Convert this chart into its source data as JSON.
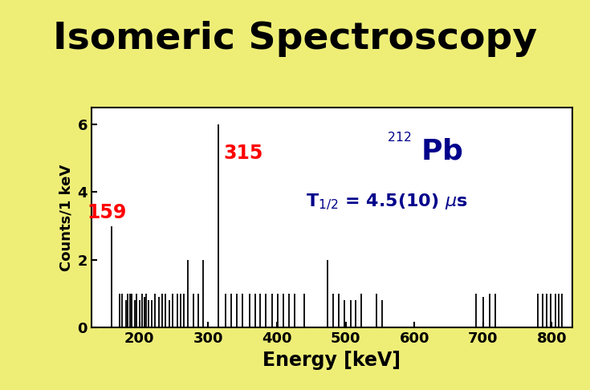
{
  "title": "Isomeric Spectroscopy",
  "title_bg": "#90EE90",
  "outer_bg": "#EEEE77",
  "plot_bg": "#FFFFFF",
  "black_bar_color": "#000000",
  "bar_color": "#000000",
  "ylabel": "Counts/1 keV",
  "xlabel": "Energy [keV]",
  "xlim": [
    130,
    830
  ],
  "ylim": [
    0,
    6.5
  ],
  "yticks": [
    0,
    2,
    4,
    6
  ],
  "xticks": [
    200,
    300,
    400,
    500,
    600,
    700,
    800
  ],
  "peak_label_159": "159",
  "peak_label_315": "315",
  "peak_label_color": "#FF0000",
  "annotation_color": "#00008B",
  "peaks": [
    [
      159,
      3.0
    ],
    [
      171,
      1.0
    ],
    [
      175,
      1.0
    ],
    [
      180,
      0.8
    ],
    [
      183,
      1.0
    ],
    [
      186,
      1.0
    ],
    [
      189,
      1.0
    ],
    [
      193,
      0.8
    ],
    [
      196,
      1.0
    ],
    [
      200,
      0.8
    ],
    [
      204,
      1.0
    ],
    [
      207,
      0.9
    ],
    [
      210,
      1.0
    ],
    [
      213,
      0.8
    ],
    [
      218,
      0.8
    ],
    [
      222,
      1.0
    ],
    [
      228,
      0.9
    ],
    [
      233,
      1.0
    ],
    [
      238,
      1.0
    ],
    [
      243,
      0.8
    ],
    [
      248,
      1.0
    ],
    [
      255,
      1.0
    ],
    [
      260,
      1.0
    ],
    [
      265,
      1.0
    ],
    [
      270,
      2.0
    ],
    [
      279,
      1.0
    ],
    [
      285,
      1.0
    ],
    [
      293,
      2.0
    ],
    [
      315,
      6.0
    ],
    [
      325,
      1.0
    ],
    [
      333,
      1.0
    ],
    [
      342,
      1.0
    ],
    [
      350,
      1.0
    ],
    [
      360,
      1.0
    ],
    [
      368,
      1.0
    ],
    [
      376,
      1.0
    ],
    [
      384,
      1.0
    ],
    [
      393,
      1.0
    ],
    [
      401,
      1.0
    ],
    [
      409,
      1.0
    ],
    [
      418,
      1.0
    ],
    [
      426,
      1.0
    ],
    [
      440,
      1.0
    ],
    [
      474,
      2.0
    ],
    [
      482,
      1.0
    ],
    [
      490,
      1.0
    ],
    [
      498,
      0.8
    ],
    [
      507,
      0.8
    ],
    [
      515,
      0.8
    ],
    [
      523,
      1.0
    ],
    [
      545,
      1.0
    ],
    [
      553,
      0.8
    ],
    [
      690,
      1.0
    ],
    [
      700,
      0.9
    ],
    [
      710,
      1.0
    ],
    [
      718,
      1.0
    ],
    [
      780,
      1.0
    ],
    [
      787,
      1.0
    ],
    [
      793,
      1.0
    ],
    [
      799,
      1.0
    ],
    [
      805,
      1.0
    ],
    [
      810,
      1.0
    ],
    [
      815,
      1.0
    ]
  ]
}
